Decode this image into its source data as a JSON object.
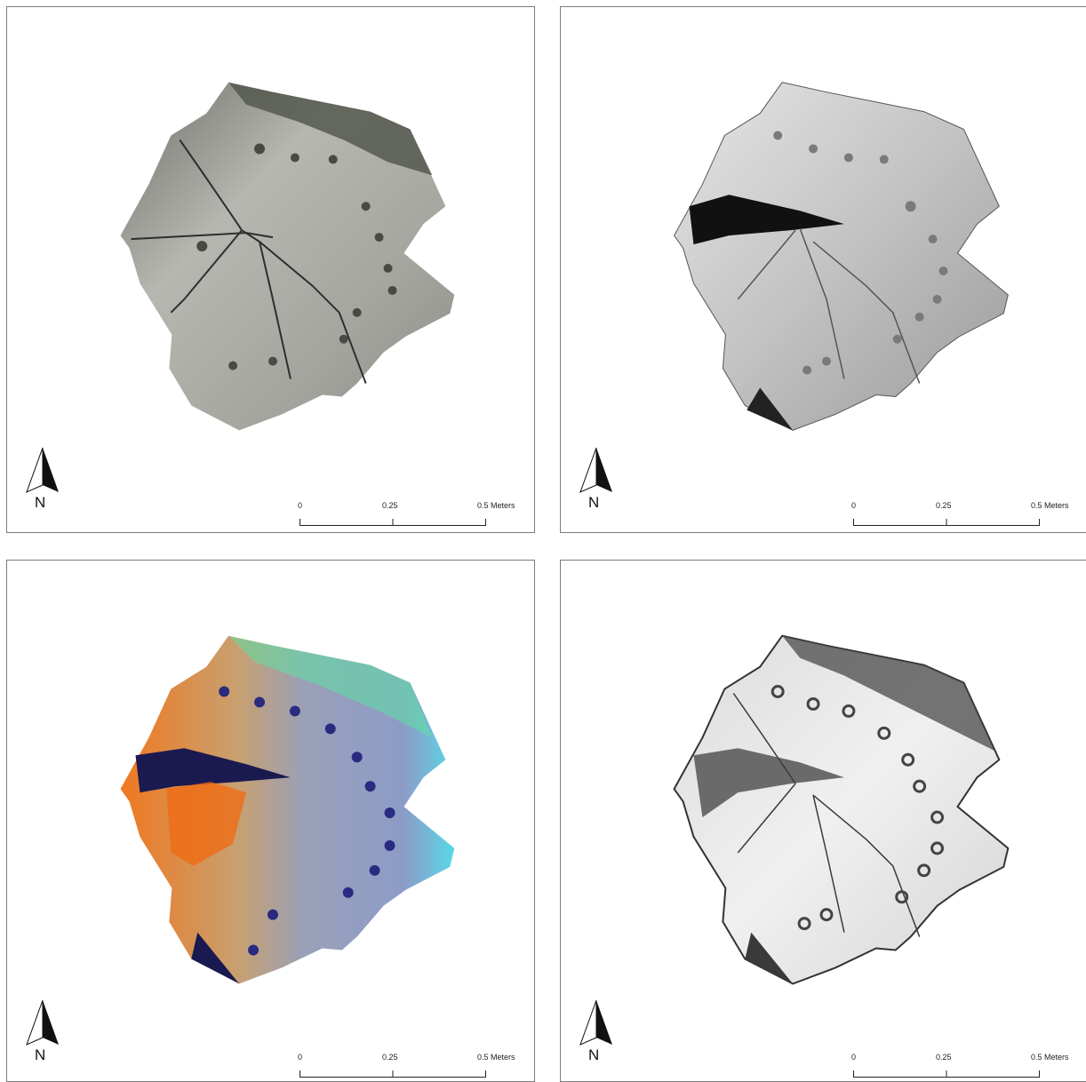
{
  "panels": [
    {
      "id": "orthophoto",
      "style": "photo"
    },
    {
      "id": "hillshade",
      "style": "hillshade"
    },
    {
      "id": "colored-relief",
      "style": "color"
    },
    {
      "id": "edge-enhanced",
      "style": "edges"
    }
  ],
  "north_arrow": {
    "label": "N"
  },
  "scale_bar": {
    "labels": [
      "0",
      "0.25",
      "0.5 Meters"
    ]
  },
  "colors": {
    "frame": "#7a7a7a",
    "rock_photo": "#a7a8a2",
    "rock_gray": "#c9c9c9",
    "relief_warm": "#f07820",
    "relief_cool": "#58d8e6"
  }
}
